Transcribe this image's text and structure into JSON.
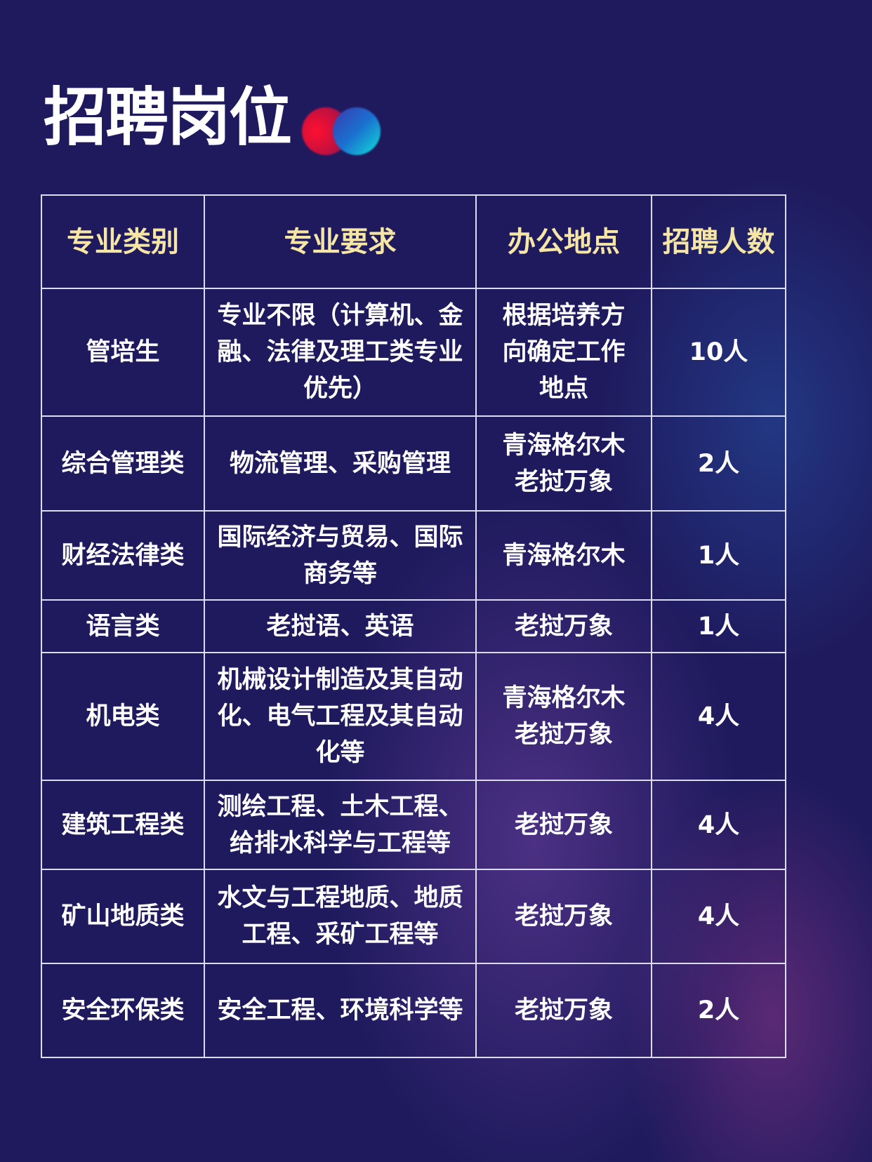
{
  "title": "招聘岗位",
  "colors": {
    "background": "#1f1a5e",
    "header_text": "#f6e6a6",
    "body_text": "#ffffff"
  },
  "table": {
    "headers": [
      "专业类别",
      "专业要求",
      "办公地点",
      "招聘人数"
    ],
    "rows": [
      [
        "管培生",
        "专业不限（计算机、金融、法律及理工类专业优先）",
        "根据培养方向确定工作地点",
        "10人"
      ],
      [
        "综合管理类",
        "物流管理、采购管理",
        "青海格尔木 老挝万象",
        "2人"
      ],
      [
        "财经法律类",
        "国际经济与贸易、国际商务等",
        "青海格尔木",
        "1人"
      ],
      [
        "语言类",
        "老挝语、英语",
        "老挝万象",
        "1人"
      ],
      [
        "机电类",
        "机械设计制造及其自动化、电气工程及其自动化等",
        "青海格尔木 老挝万象",
        "4人"
      ],
      [
        "建筑工程类",
        "测绘工程、土木工程、给排水科学与工程等",
        "老挝万象",
        "4人"
      ],
      [
        "矿山地质类",
        "水文与工程地质、地质工程、采矿工程等",
        "老挝万象",
        "4人"
      ],
      [
        "安全环保类",
        "安全工程、环境科学等",
        "老挝万象",
        "2人"
      ]
    ]
  }
}
